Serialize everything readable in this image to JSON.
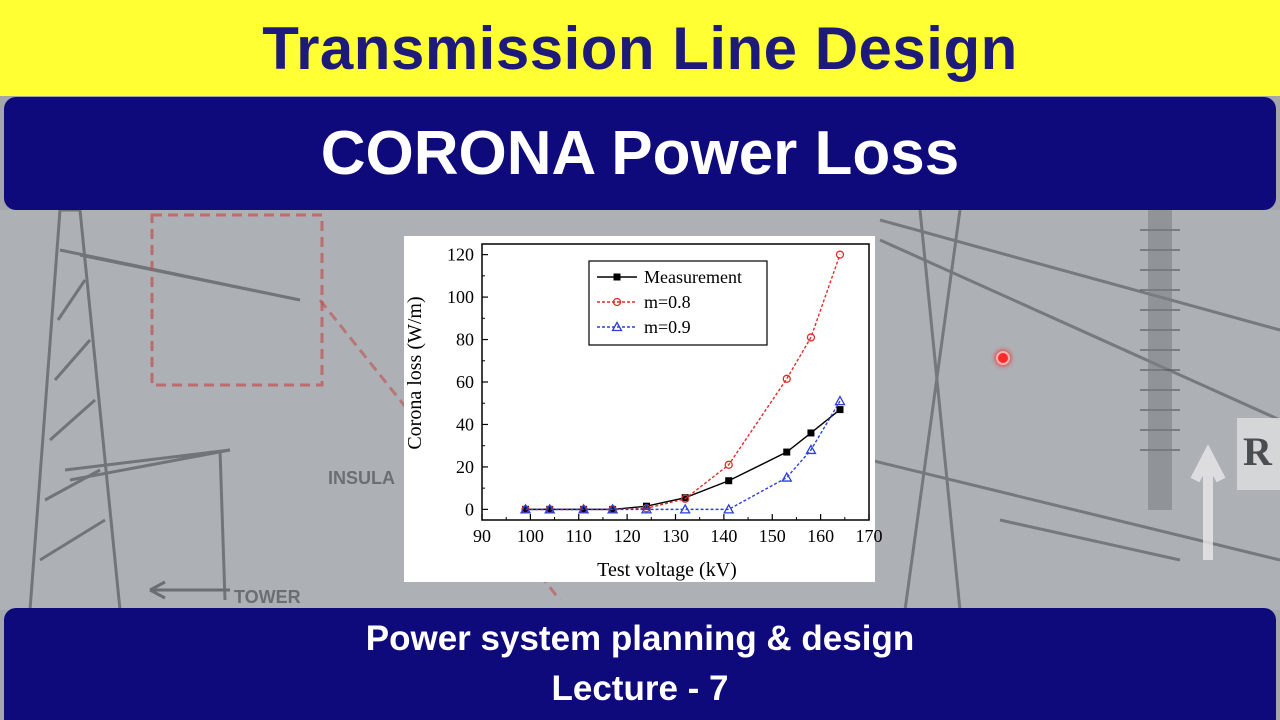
{
  "header": {
    "top_title": "Transmission Line Design",
    "main_title": "CORONA Power Loss"
  },
  "footer": {
    "line1": "Power system planning & design",
    "line2": "Lecture - 7"
  },
  "background_labels": {
    "insulator": "INSULA",
    "tower": "TOWER",
    "edge_letter": "R"
  },
  "colors": {
    "yellow": "#ffff33",
    "navy": "#0f0a7c",
    "title_text": "#1e1a7a"
  },
  "chart_data": {
    "type": "line",
    "xlabel": "Test voltage (kV)",
    "ylabel": "Corona loss (W/m)",
    "xlim": [
      90,
      170
    ],
    "ylim": [
      -5,
      125
    ],
    "xticks": [
      90,
      100,
      110,
      120,
      130,
      140,
      150,
      160,
      170
    ],
    "yticks": [
      0,
      20,
      40,
      60,
      80,
      100,
      120
    ],
    "legend": "top-left",
    "series": [
      {
        "name": "Measurement",
        "color": "#000000",
        "marker": "square",
        "dash": "solid",
        "x": [
          99,
          104,
          111,
          117,
          124,
          132,
          141,
          153,
          158,
          164
        ],
        "y": [
          0,
          0,
          0,
          0,
          1.5,
          5.5,
          13.5,
          27,
          36,
          47
        ]
      },
      {
        "name": "m=0.8",
        "color": "#d9302b",
        "marker": "circle",
        "dash": "dashed",
        "x": [
          99,
          104,
          111,
          117,
          124,
          132,
          141,
          153,
          158,
          164
        ],
        "y": [
          0,
          0,
          0,
          0,
          0.5,
          5,
          21,
          61.5,
          81,
          120
        ]
      },
      {
        "name": "m=0.9",
        "color": "#2b3fd9",
        "marker": "triangle",
        "dash": "dashed",
        "x": [
          99,
          104,
          111,
          117,
          124,
          132,
          141,
          153,
          158,
          164
        ],
        "y": [
          0,
          0,
          0,
          0,
          0,
          0,
          0,
          15,
          28,
          51
        ]
      }
    ]
  }
}
